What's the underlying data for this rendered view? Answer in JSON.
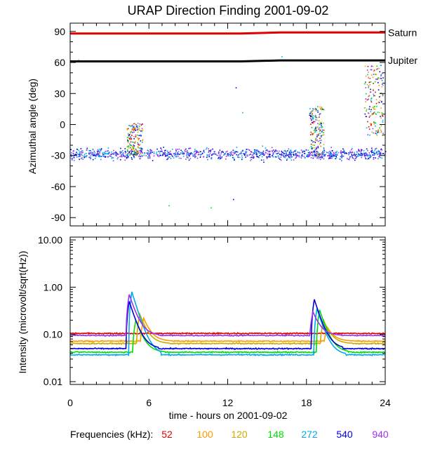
{
  "title": "URAP Direction Finding  2001-09-02",
  "chart_data": [
    {
      "type": "scatter",
      "panel": "top",
      "ylabel": "Azimuthal angle (deg)",
      "xlim": [
        0,
        24
      ],
      "ylim": [
        -90,
        90
      ],
      "yticks": [
        "90",
        "60",
        "30",
        "0",
        "-30",
        "-60",
        "-90"
      ],
      "reference_lines": [
        {
          "label": "Saturn",
          "value": 88,
          "color": "#e00000"
        },
        {
          "label": "Jupiter",
          "value": 61,
          "color": "#000000"
        }
      ],
      "baseline_band_deg": [
        -38,
        -18
      ],
      "bursts": [
        {
          "start_h": 4.3,
          "end_h": 5.5,
          "range_deg": [
            -30,
            2
          ]
        },
        {
          "start_h": 18.2,
          "end_h": 19.3,
          "range_deg": [
            -30,
            18
          ]
        },
        {
          "start_h": 22.4,
          "end_h": 23.8,
          "range_deg": [
            -10,
            58
          ]
        }
      ]
    },
    {
      "type": "line",
      "panel": "bottom",
      "xlabel": "time - hours on 2001-09-02",
      "ylabel": "Intensity (microvolt/sqrt(Hz))",
      "xlim": [
        0,
        24
      ],
      "ylim": [
        0.01,
        10
      ],
      "yscale": "log",
      "yticks": [
        "10.00",
        "1.00",
        "0.10",
        "0.01"
      ],
      "xticks": [
        "0",
        "6",
        "12",
        "18",
        "24"
      ],
      "series": [
        {
          "name": "52",
          "color": "#e00000",
          "baseline": 0.105,
          "peaks": []
        },
        {
          "name": "100",
          "color": "#ff9900",
          "baseline": 0.072,
          "peaks": [
            {
              "t": 5.6,
              "v": 0.22
            },
            {
              "t": 19.6,
              "v": 0.14
            }
          ]
        },
        {
          "name": "120",
          "color": "#ccaa00",
          "baseline": 0.064,
          "peaks": [
            {
              "t": 5.3,
              "v": 0.27
            },
            {
              "t": 19.3,
              "v": 0.2
            }
          ]
        },
        {
          "name": "148",
          "color": "#00dd00",
          "baseline": 0.042,
          "peaks": [
            {
              "t": 5.0,
              "v": 0.2
            },
            {
              "t": 19.0,
              "v": 0.33
            }
          ]
        },
        {
          "name": "272",
          "color": "#00aaee",
          "baseline": 0.037,
          "peaks": [
            {
              "t": 4.7,
              "v": 0.8
            },
            {
              "t": 18.8,
              "v": 0.35
            }
          ]
        },
        {
          "name": "540",
          "color": "#0000dd",
          "baseline": 0.05,
          "peaks": [
            {
              "t": 4.5,
              "v": 0.5
            },
            {
              "t": 18.6,
              "v": 0.55
            }
          ]
        },
        {
          "name": "940",
          "color": "#9933ee",
          "baseline": 0.095,
          "peaks": [
            {
              "t": 4.5,
              "v": 0.7
            },
            {
              "t": 18.5,
              "v": 0.3
            }
          ]
        }
      ]
    }
  ],
  "legend": {
    "label": "Frequencies (kHz):",
    "items": [
      "52",
      "100",
      "120",
      "148",
      "272",
      "540",
      "940"
    ]
  }
}
